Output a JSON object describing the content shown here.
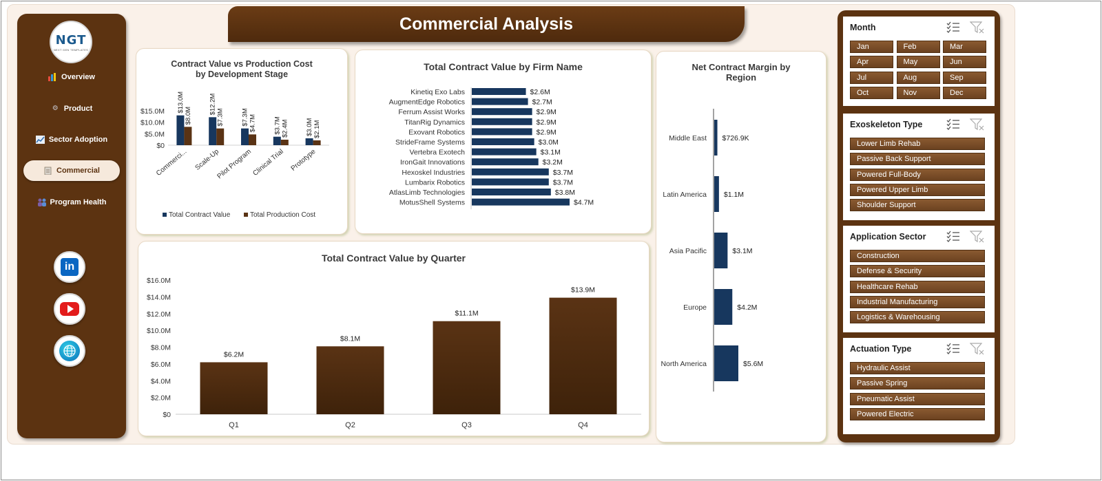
{
  "title": "Commercial Analysis",
  "logo": {
    "mark": "NGT",
    "subtitle": "NEXT GEN TEMPLATES"
  },
  "nav": [
    {
      "label": "Overview",
      "icon": "bar-chart-icon"
    },
    {
      "label": "Product",
      "icon": "gear-icon"
    },
    {
      "label": "Sector Adoption",
      "icon": "line-chart-icon"
    },
    {
      "label": "Commercial",
      "icon": "clipboard-icon"
    },
    {
      "label": "Program Health",
      "icon": "people-icon"
    }
  ],
  "social": [
    {
      "name": "linkedin",
      "icon": "linkedin-icon",
      "glyph": "in"
    },
    {
      "name": "youtube",
      "icon": "youtube-icon"
    },
    {
      "name": "website",
      "icon": "globe-icon"
    }
  ],
  "colors": {
    "brown": "#5c3311",
    "navy": "#17375e",
    "bar_brown": "#5a3314",
    "chip": "#7a4b26"
  },
  "charts": {
    "stage": {
      "title_line1": "Contract Value vs Production Cost",
      "title_line2": "by Development Stage",
      "legend_left": "Total Contract Value",
      "legend_right": "Total Production Cost"
    },
    "firm": {
      "title": "Total Contract Value by Firm Name"
    },
    "quarter": {
      "title": "Total Contract Value by Quarter"
    },
    "region": {
      "title_line1": "Net Contract Margin by",
      "title_line2": "Region"
    }
  },
  "chart_data": [
    {
      "type": "bar",
      "title": "Contract Value vs Production Cost by Development Stage",
      "categories": [
        "Commerci...",
        "Scale-Up",
        "Pilot Program",
        "Clinical Trial",
        "Prototype"
      ],
      "series": [
        {
          "name": "Total Contract Value",
          "values": [
            13.0,
            12.2,
            7.3,
            3.7,
            3.0
          ],
          "labels": [
            "$13.0M",
            "$12.2M",
            "$7.3M",
            "$3.7M",
            "$3.0M"
          ]
        },
        {
          "name": "Total Production Cost",
          "values": [
            8.0,
            7.3,
            4.7,
            2.4,
            2.1
          ],
          "labels": [
            "$8.0M",
            "$7.3M",
            "$4.7M",
            "$2.4M",
            "$2.1M"
          ]
        }
      ],
      "ylim": [
        0,
        15
      ],
      "yticks": [
        0,
        5,
        10,
        15
      ],
      "ytick_labels": [
        "$0",
        "$5.0M",
        "$10.0M",
        "$15.0M"
      ],
      "legend": "bottom",
      "grid": false
    },
    {
      "type": "bar",
      "orientation": "horizontal",
      "title": "Total Contract Value by Firm Name",
      "categories": [
        "Kinetiq Exo Labs",
        "AugmentEdge Robotics",
        "Ferrum Assist Works",
        "TitanRig Dynamics",
        "Exovant Robotics",
        "StrideFrame Systems",
        "Vertebra Exotech",
        "IronGait Innovations",
        "Hexoskel Industries",
        "Lumbarix Robotics",
        "AtlasLimb Technologies",
        "MotusShell Systems"
      ],
      "values": [
        2.6,
        2.7,
        2.9,
        2.9,
        2.9,
        3.0,
        3.1,
        3.2,
        3.7,
        3.7,
        3.8,
        4.7
      ],
      "labels": [
        "$2.6M",
        "$2.7M",
        "$2.9M",
        "$2.9M",
        "$2.9M",
        "$3.0M",
        "$3.1M",
        "$3.2M",
        "$3.7M",
        "$3.7M",
        "$3.8M",
        "$4.7M"
      ],
      "xlim": [
        0,
        4.7
      ]
    },
    {
      "type": "bar",
      "title": "Total Contract Value by Quarter",
      "categories": [
        "Q1",
        "Q2",
        "Q3",
        "Q4"
      ],
      "values": [
        6.2,
        8.1,
        11.1,
        13.9
      ],
      "labels": [
        "$6.2M",
        "$8.1M",
        "$11.1M",
        "$13.9M"
      ],
      "ylim": [
        0,
        16
      ],
      "yticks": [
        0,
        2,
        4,
        6,
        8,
        10,
        12,
        14,
        16
      ],
      "ytick_labels": [
        "$0",
        "$2.0M",
        "$4.0M",
        "$6.0M",
        "$8.0M",
        "$10.0M",
        "$12.0M",
        "$14.0M",
        "$16.0M"
      ],
      "grid": false
    },
    {
      "type": "bar",
      "orientation": "horizontal",
      "title": "Net Contract Margin by Region",
      "categories": [
        "Middle East",
        "Latin America",
        "Asia Pacific",
        "Europe",
        "North America"
      ],
      "values": [
        0.7269,
        1.1,
        3.1,
        4.2,
        5.6
      ],
      "labels": [
        "$726.9K",
        "$1.1M",
        "$3.1M",
        "$4.2M",
        "$5.6M"
      ],
      "xlim": [
        0,
        5.6
      ]
    }
  ],
  "slicers": [
    {
      "title": "Month",
      "items": [
        "Jan",
        "Feb",
        "Mar",
        "Apr",
        "May",
        "Jun",
        "Jul",
        "Aug",
        "Sep",
        "Oct",
        "Nov",
        "Dec"
      ],
      "columns": 3
    },
    {
      "title": "Exoskeleton Type",
      "items": [
        "Lower Limb Rehab",
        "Passive Back Support",
        "Powered Full-Body",
        "Powered Upper Limb",
        "Shoulder Support"
      ],
      "columns": 1
    },
    {
      "title": "Application Sector",
      "items": [
        "Construction",
        "Defense & Security",
        "Healthcare Rehab",
        "Industrial Manufacturing",
        "Logistics & Warehousing"
      ],
      "columns": 1
    },
    {
      "title": "Actuation Type",
      "items": [
        "Hydraulic Assist",
        "Passive Spring",
        "Pneumatic Assist",
        "Powered Electric"
      ],
      "columns": 1
    }
  ]
}
